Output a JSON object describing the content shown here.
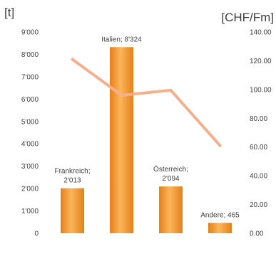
{
  "chart_data": {
    "type": "bar",
    "categories": [
      "Frankreich",
      "Italien",
      "Österreich",
      "Andere"
    ],
    "series": [
      {
        "axis": "left",
        "values": [
          2013,
          8324,
          2094,
          465
        ]
      },
      {
        "axis": "right",
        "type": "line",
        "values": [
          121,
          96,
          99.5,
          61
        ]
      }
    ],
    "data_labels": [
      {
        "lines": [
          "Frankreich;",
          "2'013"
        ]
      },
      {
        "lines": [
          "Italien; 8'324"
        ]
      },
      {
        "lines": [
          "Österreich;",
          "2'094"
        ]
      },
      {
        "lines": [
          "Andere; 465"
        ]
      }
    ],
    "y_left": {
      "unit": "[t]",
      "range": [
        0,
        9000
      ],
      "ticks": [
        0,
        1000,
        2000,
        3000,
        4000,
        5000,
        6000,
        7000,
        8000,
        9000
      ],
      "tick_labels": [
        "0",
        "1'000",
        "2'000",
        "3'000",
        "4'000",
        "5'000",
        "6'000",
        "7'000",
        "8'000",
        "9'000"
      ]
    },
    "y_right": {
      "unit": "[CHF/Fm]",
      "range": [
        0,
        140
      ],
      "ticks": [
        0,
        20,
        40,
        60,
        80,
        100,
        120,
        140
      ],
      "tick_labels": [
        "0.00",
        "20.00",
        "40.00",
        "60.00",
        "80.00",
        "100.00",
        "120.00",
        "140.00"
      ]
    },
    "grid": false,
    "legend": "none",
    "colors": {
      "bar_light": "#fbb65a",
      "bar_dark": "#e3801a",
      "line": "#f4b08c",
      "text": "#404040"
    }
  }
}
